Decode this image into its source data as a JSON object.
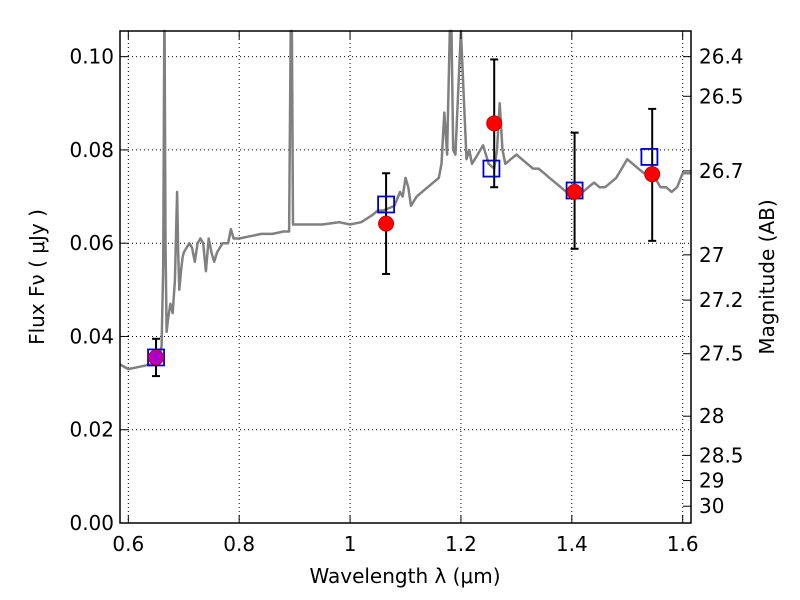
{
  "chart_data": {
    "type": "line",
    "xlabel": "Wavelength  λ (μm)",
    "ylabel": "Flux  Fν  ( μJy )",
    "ylabel_right": "Magnitude (AB)",
    "xlim": [
      0.585,
      1.615
    ],
    "ylim": [
      0.0,
      0.1055
    ],
    "x_ticks": [
      0.6,
      0.8,
      1.0,
      1.2,
      1.4,
      1.6
    ],
    "x_tick_labels": [
      "0.6",
      "0.8",
      "1",
      "1.2",
      "1.4",
      "1.6"
    ],
    "y_ticks": [
      0.0,
      0.02,
      0.04,
      0.06,
      0.08,
      0.1
    ],
    "y_tick_labels": [
      "0.00",
      "0.02",
      "0.04",
      "0.06",
      "0.08",
      "0.10"
    ],
    "right_ticks": [
      {
        "label": "26.4",
        "flux": 0.1
      },
      {
        "label": "26.5",
        "flux": 0.0915
      },
      {
        "label": "26.7",
        "flux": 0.0755
      },
      {
        "label": "27",
        "flux": 0.0575
      },
      {
        "label": "27.2",
        "flux": 0.0478
      },
      {
        "label": "27.5",
        "flux": 0.0363
      },
      {
        "label": "28",
        "flux": 0.0229
      },
      {
        "label": "28.5",
        "flux": 0.0145
      },
      {
        "label": "29",
        "flux": 0.0091
      },
      {
        "label": "30",
        "flux": 0.0036
      }
    ],
    "grid": true,
    "colors": {
      "spectrum": "#808080",
      "observed": "#ff0000",
      "observed_edge": "#cc0000",
      "model": "#0000cc",
      "first_point": "#b000c8",
      "errorbar": "#000000"
    },
    "series": [
      {
        "kind": "model-spectrum",
        "x": [
          0.585,
          0.6,
          0.62,
          0.64,
          0.655,
          0.66,
          0.663,
          0.665,
          0.6655,
          0.667,
          0.669,
          0.672,
          0.676,
          0.68,
          0.684,
          0.688,
          0.69,
          0.692,
          0.695,
          0.698,
          0.7,
          0.705,
          0.71,
          0.715,
          0.72,
          0.725,
          0.73,
          0.735,
          0.74,
          0.745,
          0.75,
          0.755,
          0.76,
          0.77,
          0.78,
          0.785,
          0.79,
          0.8,
          0.82,
          0.84,
          0.86,
          0.88,
          0.89,
          0.893,
          0.895,
          0.897,
          0.9,
          0.92,
          0.95,
          0.98,
          1.0,
          1.02,
          1.04,
          1.05,
          1.06,
          1.08,
          1.09,
          1.095,
          1.1,
          1.105,
          1.11,
          1.115,
          1.12,
          1.13,
          1.14,
          1.15,
          1.16,
          1.165,
          1.17,
          1.175,
          1.18,
          1.183,
          1.186,
          1.19,
          1.2,
          1.21,
          1.215,
          1.22,
          1.23,
          1.24,
          1.25,
          1.26,
          1.265,
          1.27,
          1.275,
          1.28,
          1.29,
          1.3,
          1.31,
          1.32,
          1.33,
          1.34,
          1.35,
          1.36,
          1.37,
          1.38,
          1.39,
          1.4,
          1.41,
          1.42,
          1.43,
          1.44,
          1.45,
          1.46,
          1.47,
          1.48,
          1.49,
          1.5,
          1.51,
          1.52,
          1.53,
          1.54,
          1.55,
          1.56,
          1.57,
          1.58,
          1.59,
          1.6,
          1.615
        ],
        "y": [
          0.034,
          0.033,
          0.0335,
          0.034,
          0.035,
          0.038,
          0.055,
          0.1055,
          0.1055,
          0.06,
          0.041,
          0.044,
          0.047,
          0.045,
          0.052,
          0.071,
          0.058,
          0.05,
          0.054,
          0.057,
          0.058,
          0.059,
          0.06,
          0.059,
          0.056,
          0.06,
          0.061,
          0.06,
          0.054,
          0.061,
          0.058,
          0.056,
          0.058,
          0.06,
          0.06,
          0.063,
          0.061,
          0.061,
          0.0615,
          0.062,
          0.062,
          0.0625,
          0.0625,
          0.1055,
          0.1055,
          0.064,
          0.064,
          0.064,
          0.064,
          0.0645,
          0.064,
          0.0645,
          0.066,
          0.067,
          0.067,
          0.068,
          0.071,
          0.07,
          0.074,
          0.072,
          0.068,
          0.069,
          0.07,
          0.071,
          0.072,
          0.073,
          0.074,
          0.077,
          0.088,
          0.079,
          0.1055,
          0.1055,
          0.08,
          0.079,
          0.1055,
          0.078,
          0.08,
          0.077,
          0.079,
          0.081,
          0.077,
          0.076,
          0.08,
          0.09,
          0.08,
          0.077,
          0.078,
          0.079,
          0.078,
          0.077,
          0.076,
          0.076,
          0.075,
          0.074,
          0.073,
          0.072,
          0.071,
          0.071,
          0.07,
          0.071,
          0.072,
          0.073,
          0.072,
          0.072,
          0.073,
          0.074,
          0.076,
          0.078,
          0.077,
          0.076,
          0.075,
          0.075,
          0.074,
          0.072,
          0.072,
          0.071,
          0.072,
          0.075,
          0.075
        ]
      },
      {
        "kind": "observed-photometry",
        "x": [
          0.65,
          1.065,
          1.26,
          1.405,
          1.545
        ],
        "y": [
          0.0355,
          0.0642,
          0.0857,
          0.071,
          0.0748
        ],
        "yerr_low": [
          0.004,
          0.0108,
          0.0137,
          0.0122,
          0.0143
        ],
        "yerr_high": [
          0.004,
          0.0108,
          0.0137,
          0.0127,
          0.014
        ]
      },
      {
        "kind": "model-photometry",
        "x": [
          0.65,
          1.065,
          1.255,
          1.405,
          1.54
        ],
        "y": [
          0.0355,
          0.0683,
          0.076,
          0.0713,
          0.0785
        ]
      }
    ]
  }
}
